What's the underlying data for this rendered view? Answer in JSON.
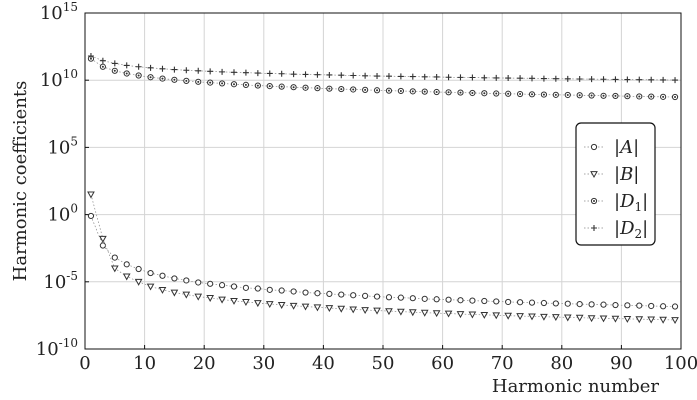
{
  "chart_data": {
    "type": "scatter",
    "xlabel": "Harmonic number",
    "ylabel": "Harmonic coefficients",
    "x_ticks": [
      0,
      10,
      20,
      30,
      40,
      50,
      60,
      70,
      80,
      90,
      100
    ],
    "x_tick_labels": [
      "0",
      "10",
      "20",
      "30",
      "40",
      "50",
      "60",
      "70",
      "80",
      "90",
      "100"
    ],
    "y_ticks": [
      -10,
      -5,
      0,
      5,
      10,
      15
    ],
    "y_tick_labels": [
      {
        "base": "10",
        "exp": "-10"
      },
      {
        "base": "10",
        "exp": "-5"
      },
      {
        "base": "10",
        "exp": "0"
      },
      {
        "base": "10",
        "exp": "5"
      },
      {
        "base": "10",
        "exp": "10"
      },
      {
        "base": "10",
        "exp": "15"
      }
    ],
    "xlim": [
      0,
      100
    ],
    "ylim_log10": [
      -10,
      15
    ],
    "yscale": "log",
    "grid": true,
    "legend_position": "right-center",
    "x": [
      1,
      3,
      5,
      7,
      9,
      11,
      13,
      15,
      17,
      19,
      21,
      23,
      25,
      27,
      29,
      31,
      33,
      35,
      37,
      39,
      41,
      43,
      45,
      47,
      49,
      51,
      53,
      55,
      57,
      59,
      61,
      63,
      65,
      67,
      69,
      71,
      73,
      75,
      77,
      79,
      81,
      83,
      85,
      87,
      89,
      91,
      93,
      95,
      97,
      99
    ],
    "series": [
      {
        "name": "|A|",
        "marker": "circle",
        "log10_values": [
          -0.1,
          -2.3,
          -3.2,
          -3.7,
          -4.05,
          -4.35,
          -4.55,
          -4.75,
          -4.9,
          -5.05,
          -5.15,
          -5.25,
          -5.35,
          -5.45,
          -5.5,
          -5.6,
          -5.65,
          -5.72,
          -5.8,
          -5.85,
          -5.9,
          -5.95,
          -6.0,
          -6.05,
          -6.1,
          -6.15,
          -6.18,
          -6.22,
          -6.27,
          -6.3,
          -6.33,
          -6.37,
          -6.4,
          -6.43,
          -6.46,
          -6.5,
          -6.52,
          -6.55,
          -6.58,
          -6.61,
          -6.63,
          -6.66,
          -6.68,
          -6.7,
          -6.73,
          -6.75,
          -6.77,
          -6.8,
          -6.82,
          -6.84
        ]
      },
      {
        "name": "|B|",
        "marker": "triangle-down",
        "log10_values": [
          1.5,
          -1.8,
          -4.0,
          -4.6,
          -5.0,
          -5.35,
          -5.6,
          -5.8,
          -5.95,
          -6.1,
          -6.2,
          -6.32,
          -6.42,
          -6.5,
          -6.58,
          -6.65,
          -6.72,
          -6.78,
          -6.84,
          -6.9,
          -6.95,
          -7.0,
          -7.05,
          -7.1,
          -7.14,
          -7.18,
          -7.22,
          -7.26,
          -7.3,
          -7.33,
          -7.36,
          -7.4,
          -7.43,
          -7.46,
          -7.49,
          -7.52,
          -7.55,
          -7.57,
          -7.6,
          -7.62,
          -7.65,
          -7.67,
          -7.7,
          -7.72,
          -7.74,
          -7.76,
          -7.78,
          -7.8,
          -7.82,
          -7.84
        ]
      },
      {
        "name": "|D_1|",
        "marker": "circle-dot",
        "log10_values": [
          11.6,
          11.0,
          10.7,
          10.5,
          10.35,
          10.22,
          10.12,
          10.03,
          9.95,
          9.88,
          9.82,
          9.76,
          9.7,
          9.65,
          9.6,
          9.56,
          9.52,
          9.48,
          9.44,
          9.41,
          9.37,
          9.34,
          9.31,
          9.28,
          9.25,
          9.22,
          9.2,
          9.17,
          9.15,
          9.12,
          9.1,
          9.08,
          9.05,
          9.03,
          9.01,
          8.99,
          8.97,
          8.95,
          8.93,
          8.91,
          8.9,
          8.88,
          8.86,
          8.84,
          8.83,
          8.81,
          8.79,
          8.78,
          8.76,
          8.75
        ]
      },
      {
        "name": "|D_2|",
        "marker": "plus",
        "log10_values": [
          11.8,
          11.45,
          11.25,
          11.1,
          11.0,
          10.92,
          10.85,
          10.79,
          10.74,
          10.7,
          10.66,
          10.62,
          10.59,
          10.56,
          10.53,
          10.5,
          10.48,
          10.45,
          10.43,
          10.41,
          10.39,
          10.37,
          10.35,
          10.33,
          10.31,
          10.3,
          10.28,
          10.27,
          10.25,
          10.24,
          10.22,
          10.21,
          10.2,
          10.18,
          10.17,
          10.16,
          10.15,
          10.14,
          10.12,
          10.11,
          10.1,
          10.09,
          10.08,
          10.07,
          10.06,
          10.05,
          10.04,
          10.03,
          10.02,
          10.01
        ]
      }
    ]
  }
}
